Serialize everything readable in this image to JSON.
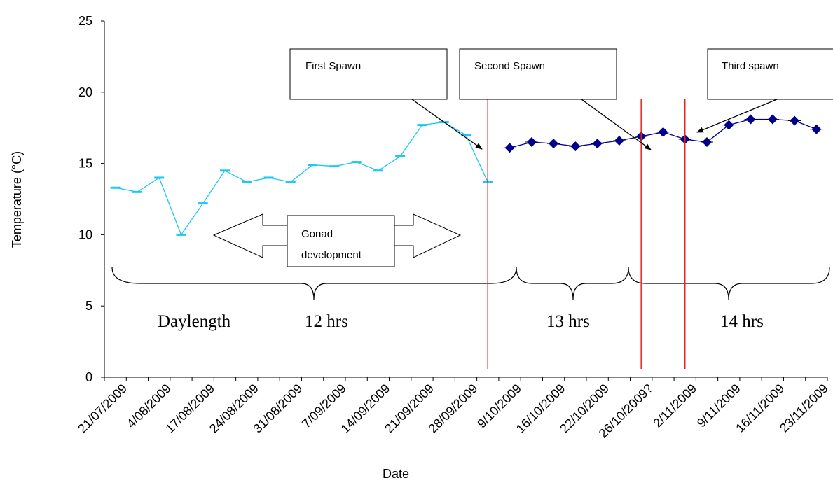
{
  "chart_data": {
    "type": "line",
    "title": "",
    "xlabel": "Date",
    "ylabel": "Temperature (°C)",
    "ylim": [
      0,
      25
    ],
    "yticks": [
      0,
      5,
      10,
      15,
      20,
      25
    ],
    "grid": false,
    "categories": [
      "21/07/2009",
      "4/08/2009",
      "17/08/2009",
      "24/08/2009",
      "31/08/2009",
      "7/09/2009",
      "14/09/2009",
      "21/09/2009",
      "28/09/2009",
      "9/10/2009",
      "16/10/2009",
      "22/10/2009",
      "26/10/2009?",
      "2/11/2009",
      "9/11/2009",
      "16/11/2009",
      "23/11/2009"
    ],
    "x_slots": 33,
    "series": [
      {
        "color": "#1EC8F0",
        "marker": "dash",
        "points": [
          [
            0,
            13.3
          ],
          [
            1,
            13.0
          ],
          [
            2,
            14.0
          ],
          [
            3,
            10.0
          ],
          [
            4,
            12.2
          ],
          [
            5,
            14.5
          ],
          [
            6,
            13.7
          ],
          [
            7,
            14.0
          ],
          [
            8,
            13.7
          ],
          [
            9,
            14.9
          ],
          [
            10,
            14.8
          ],
          [
            11,
            15.1
          ],
          [
            12,
            14.5
          ],
          [
            13,
            15.5
          ],
          [
            14,
            17.7
          ],
          [
            15,
            17.9
          ],
          [
            16,
            17.0
          ],
          [
            17,
            13.7
          ]
        ]
      },
      {
        "color": "#00008B",
        "marker": "diamond",
        "points": [
          [
            18,
            16.1
          ],
          [
            19,
            16.5
          ],
          [
            20,
            16.4
          ],
          [
            21,
            16.2
          ],
          [
            22,
            16.4
          ],
          [
            23,
            16.6
          ],
          [
            24,
            16.9
          ],
          [
            25,
            17.2
          ],
          [
            26,
            16.7
          ],
          [
            27,
            16.5
          ],
          [
            28,
            17.7
          ],
          [
            29,
            18.1
          ],
          [
            30,
            18.1
          ],
          [
            31,
            18.0
          ],
          [
            32,
            17.4
          ]
        ]
      }
    ],
    "spawn_lines": [
      17.5,
      24.5,
      26.5
    ],
    "spawn_line_color": "#E8201E",
    "annotations": {
      "first_spawn": "First Spawn",
      "second_spawn": "Second Spawn",
      "third_spawn": "Third spawn",
      "gonad_line1": "Gonad",
      "gonad_line2": "development"
    },
    "daylength": {
      "label": "Daylength",
      "period1": "12 hrs",
      "period2": "13 hrs",
      "period3": "14 hrs"
    }
  }
}
